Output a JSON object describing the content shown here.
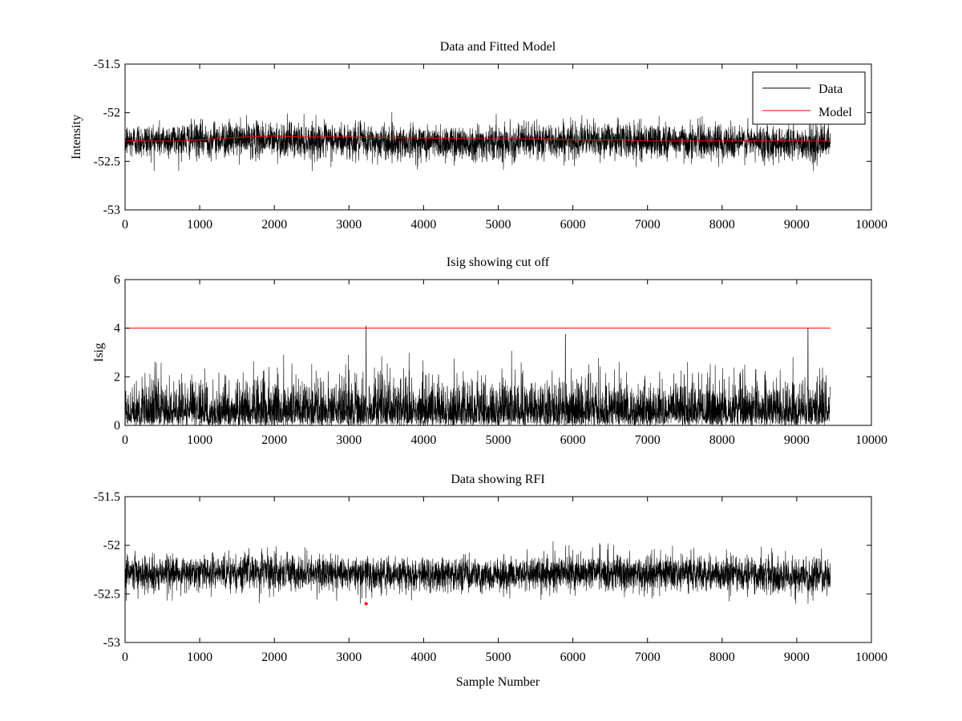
{
  "chart_data": [
    {
      "type": "line",
      "title": "Data and Fitted Model",
      "xlabel": "",
      "ylabel": "Intensity",
      "xlim": [
        0,
        10000
      ],
      "ylim": [
        -53,
        -51.5
      ],
      "xticks": [
        0,
        1000,
        2000,
        3000,
        4000,
        5000,
        6000,
        7000,
        8000,
        9000,
        10000
      ],
      "yticks": [
        -53,
        -52.5,
        -52,
        -51.5
      ],
      "xtick_labels": [
        "0",
        "1000",
        "2000",
        "3000",
        "4000",
        "5000",
        "6000",
        "7000",
        "8000",
        "9000",
        "10000"
      ],
      "ytick_labels": [
        "-53",
        "-52.5",
        "-52",
        "-51.5"
      ],
      "grid": false,
      "legend": {
        "placement": "top-right",
        "entries": [
          "Data",
          "Model"
        ]
      },
      "series": [
        {
          "name": "Data",
          "color": "#000000",
          "kind": "noise",
          "x_range": [
            1,
            9450
          ],
          "center": -52.29,
          "spread": 0.09,
          "min": -52.6,
          "max": -51.96
        },
        {
          "name": "Model",
          "color": "#ff0000",
          "x": [
            0,
            800,
            1200,
            1600,
            2000,
            2400,
            3000,
            4000,
            5000,
            5600,
            6000,
            6700,
            7000,
            8000,
            9000,
            9450
          ],
          "y": [
            -52.29,
            -52.29,
            -52.27,
            -52.25,
            -52.24,
            -52.25,
            -52.25,
            -52.26,
            -52.27,
            -52.27,
            -52.28,
            -52.28,
            -52.29,
            -52.29,
            -52.29,
            -52.29
          ]
        }
      ]
    },
    {
      "type": "line",
      "title": "Isig showing cut off",
      "xlabel": "",
      "ylabel": "Isig",
      "xlim": [
        0,
        10000
      ],
      "ylim": [
        0,
        6
      ],
      "xticks": [
        0,
        1000,
        2000,
        3000,
        4000,
        5000,
        6000,
        7000,
        8000,
        9000,
        10000
      ],
      "yticks": [
        0,
        2,
        4,
        6
      ],
      "xtick_labels": [
        "0",
        "1000",
        "2000",
        "3000",
        "4000",
        "5000",
        "6000",
        "7000",
        "8000",
        "9000",
        "10000"
      ],
      "ytick_labels": [
        "0",
        "2",
        "4",
        "6"
      ],
      "grid": false,
      "series": [
        {
          "color": "#000000",
          "kind": "abs-noise",
          "x_range": [
            1,
            9450
          ],
          "scale": 0.85,
          "max": 3.8,
          "spikes": [
            {
              "x": 3230,
              "y": 4.1
            },
            {
              "x": 5900,
              "y": 3.75
            },
            {
              "x": 9150,
              "y": 4.0
            }
          ]
        },
        {
          "color": "#ff0000",
          "x": [
            0,
            9450
          ],
          "y": [
            4,
            4
          ]
        }
      ]
    },
    {
      "type": "line",
      "title": "Data showing RFI",
      "xlabel": "Sample Number",
      "ylabel": "",
      "xlim": [
        0,
        10000
      ],
      "ylim": [
        -53,
        -51.5
      ],
      "xticks": [
        0,
        1000,
        2000,
        3000,
        4000,
        5000,
        6000,
        7000,
        8000,
        9000,
        10000
      ],
      "yticks": [
        -53,
        -52.5,
        -52,
        -51.5
      ],
      "xtick_labels": [
        "0",
        "1000",
        "2000",
        "3000",
        "4000",
        "5000",
        "6000",
        "7000",
        "8000",
        "9000",
        "10000"
      ],
      "ytick_labels": [
        "-53",
        "-52.5",
        "-52",
        "-51.5"
      ],
      "grid": false,
      "series": [
        {
          "color": "#000000",
          "kind": "noise",
          "x_range": [
            1,
            9450
          ],
          "center": -52.29,
          "spread": 0.09,
          "min": -52.6,
          "max": -51.96
        },
        {
          "color": "#ff0000",
          "kind": "markers",
          "x": [
            3230
          ],
          "y": [
            -52.6
          ]
        }
      ]
    }
  ]
}
